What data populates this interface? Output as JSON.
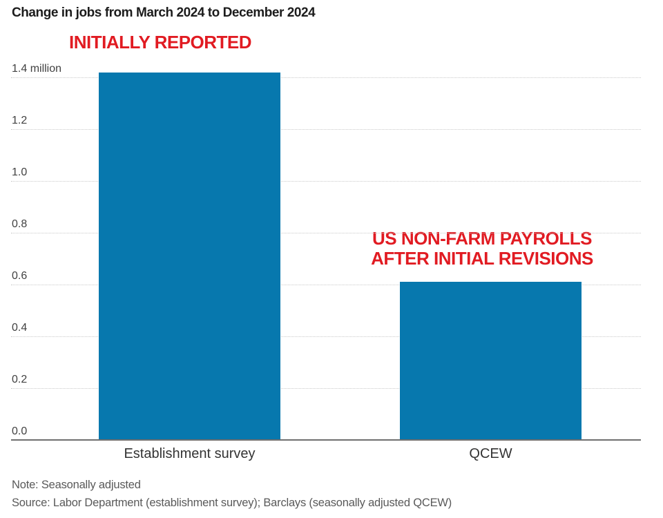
{
  "chart_data": {
    "type": "bar",
    "title": "Change in jobs from March 2024 to December 2024",
    "categories": [
      "Establishment survey",
      "QCEW"
    ],
    "values": [
      1.42,
      0.61
    ],
    "value_unit": "million jobs",
    "xlabel": "",
    "ylabel": "",
    "ylim": [
      0,
      1.4
    ],
    "yticks": [
      0,
      0.2,
      0.4,
      0.6,
      0.8,
      1.0,
      1.2,
      1.4
    ],
    "ytick_labels": [
      "0.0",
      "0.2",
      "0.4",
      "0.6",
      "0.8",
      "1.0",
      "1.2",
      "1.4 million"
    ],
    "grid": "horizontal-dotted",
    "legend": "none",
    "annotations": [
      {
        "target": "Establishment survey",
        "lines": [
          "INITIALLY REPORTED"
        ]
      },
      {
        "target": "QCEW",
        "lines": [
          "US NON-FARM PAYROLLS",
          "AFTER INITIAL REVISIONS"
        ]
      }
    ]
  },
  "notes": {
    "note": "Note: Seasonally adjusted",
    "source": "Source: Labor Department (establishment survey); Barclays (seasonally adjusted QCEW)"
  },
  "colors": {
    "bar_blue": "#0778ae",
    "annotation_red": "#e11b22",
    "title_text": "#1c1c1c",
    "axis_text": "#414141",
    "category_text": "#333333",
    "note_text": "#595959",
    "gridline": "#c9c9c9",
    "baseline": "#6f6f6f",
    "background": "#ffffff"
  }
}
